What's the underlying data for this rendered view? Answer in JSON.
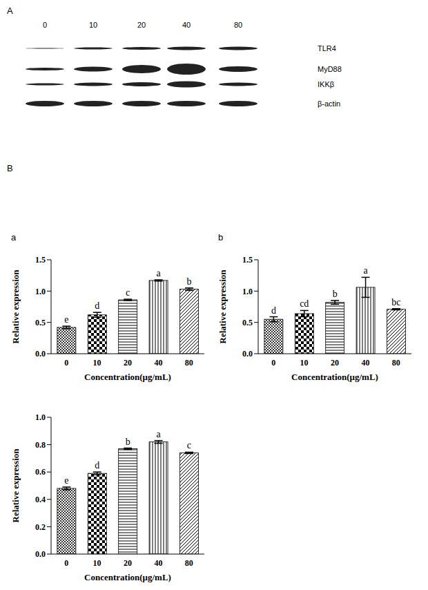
{
  "panel_labels": [
    "A",
    "B"
  ],
  "blot": {
    "lanes": [
      "0",
      "10",
      "20",
      "40",
      "80"
    ],
    "rows": [
      "TLR4",
      "MyD88",
      "IKKβ",
      "β-actin"
    ]
  },
  "chart_data": [
    {
      "type": "bar",
      "title": "a",
      "categories": [
        "0",
        "10",
        "20",
        "40",
        "80"
      ],
      "values": [
        0.42,
        0.62,
        0.86,
        1.17,
        1.03
      ],
      "errors": [
        0.02,
        0.04,
        0.01,
        0.01,
        0.02
      ],
      "annotations": [
        "e",
        "d",
        "c",
        "a",
        "b"
      ],
      "xlabel": "Concentration(μg/mL)",
      "ylabel": "Relative expression",
      "ylim": [
        0,
        1.5
      ],
      "yticks": [
        {
          "value": 0,
          "label": "0.0"
        },
        {
          "value": 0.5,
          "label": "0.5"
        },
        {
          "value": 1,
          "label": "1.0"
        },
        {
          "value": 1.5,
          "label": "1.5"
        }
      ],
      "color": "#000000"
    },
    {
      "type": "bar",
      "title": "b",
      "categories": [
        "0",
        "10",
        "20",
        "40",
        "80"
      ],
      "values": [
        0.55,
        0.64,
        0.82,
        1.06,
        0.71
      ],
      "errors": [
        0.04,
        0.05,
        0.03,
        0.16,
        0.01
      ],
      "annotations": [
        "d",
        "cd",
        "b",
        "a",
        "bc"
      ],
      "xlabel": "Concentration(μg/mL)",
      "ylabel": "Relative expression",
      "ylim": [
        0,
        1.5
      ],
      "yticks": [
        {
          "value": 0,
          "label": "0.0"
        },
        {
          "value": 0.5,
          "label": "0.5"
        },
        {
          "value": 1,
          "label": "1.0"
        },
        {
          "value": 1.5,
          "label": "1.5"
        }
      ],
      "color": "#000000"
    },
    {
      "type": "bar",
      "categories": [
        "0",
        "10",
        "20",
        "40",
        "80"
      ],
      "values": [
        0.48,
        0.59,
        0.77,
        0.82,
        0.74
      ],
      "errors": [
        0.01,
        0.01,
        0.005,
        0.01,
        0.005
      ],
      "annotations": [
        "e",
        "d",
        "b",
        "a",
        "c"
      ],
      "xlabel": "Concentration(μg/mL)",
      "ylabel": "Relative expression",
      "ylim": [
        0,
        1
      ],
      "yticks": [
        {
          "value": 0,
          "label": "0.0"
        },
        {
          "value": 0.2,
          "label": "0.2"
        },
        {
          "value": 0.4,
          "label": "0.4"
        },
        {
          "value": 0.6,
          "label": "0.6"
        },
        {
          "value": 0.8,
          "label": "0.8"
        },
        {
          "value": 1,
          "label": "1.0"
        }
      ],
      "color": "#000000"
    }
  ]
}
